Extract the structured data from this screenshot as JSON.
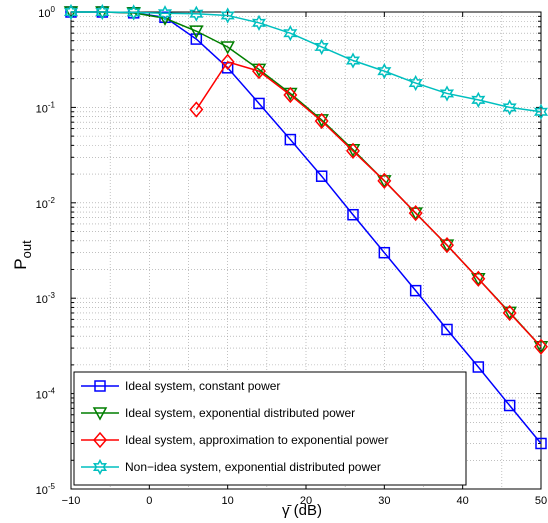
{
  "chart_data": {
    "type": "line",
    "xlabel": "γ̄ (dB)",
    "ylabel_main": "P",
    "ylabel_sub": "out",
    "xlim": [
      -10,
      50
    ],
    "ylim": [
      1e-05,
      1
    ],
    "yscale": "log",
    "grid": true,
    "legend_placement": "bottom-left",
    "x_ticks": [
      -10,
      0,
      10,
      20,
      30,
      40,
      50
    ],
    "x_tick_labels": [
      "−10",
      "0",
      "10",
      "20",
      "30",
      "40",
      "50"
    ],
    "y_tick_exponents": [
      "-5",
      "-4",
      "-3",
      "-2",
      "-1",
      "0"
    ],
    "y_tick_base": "10",
    "series": [
      {
        "name": "Ideal system, constant power",
        "color": "#0000ff",
        "marker": "square",
        "x": [
          -10,
          -6,
          -2,
          2,
          6,
          10,
          14,
          18,
          22,
          26,
          30,
          34,
          38,
          42,
          46,
          50
        ],
        "y": [
          1.0,
          1.0,
          0.98,
          0.88,
          0.52,
          0.26,
          0.11,
          0.046,
          0.019,
          0.0075,
          0.003,
          0.0012,
          0.00047,
          0.00019,
          7.5e-05,
          3e-05
        ]
      },
      {
        "name": "Ideal system, exponential distributed power",
        "color": "#007f00",
        "marker": "triangle-down",
        "x": [
          -10,
          -6,
          -2,
          2,
          6,
          10,
          14,
          18,
          22,
          26,
          30,
          34,
          38,
          42,
          46,
          50
        ],
        "y": [
          1.0,
          1.0,
          0.98,
          0.86,
          0.63,
          0.43,
          0.25,
          0.14,
          0.074,
          0.036,
          0.017,
          0.0078,
          0.0036,
          0.0016,
          0.00071,
          0.00031
        ]
      },
      {
        "name": "Ideal system, approximation to exponential power",
        "color": "#ff0000",
        "marker": "diamond",
        "x": [
          6,
          10,
          14,
          18,
          22,
          26,
          30,
          34,
          38,
          42,
          46,
          50
        ],
        "y": [
          0.095,
          0.3,
          0.24,
          0.135,
          0.072,
          0.035,
          0.017,
          0.0078,
          0.0036,
          0.0016,
          0.0007,
          0.00031
        ]
      },
      {
        "name": "Non−idea system, exponential distributed power",
        "color": "#00bfbf",
        "marker": "hexagram",
        "x": [
          -10,
          -6,
          -2,
          2,
          6,
          10,
          14,
          18,
          22,
          26,
          30,
          34,
          38,
          42,
          46,
          50
        ],
        "y": [
          1.0,
          1.0,
          0.99,
          0.97,
          0.96,
          0.92,
          0.77,
          0.6,
          0.43,
          0.31,
          0.24,
          0.18,
          0.14,
          0.12,
          0.1,
          0.09
        ]
      }
    ]
  }
}
